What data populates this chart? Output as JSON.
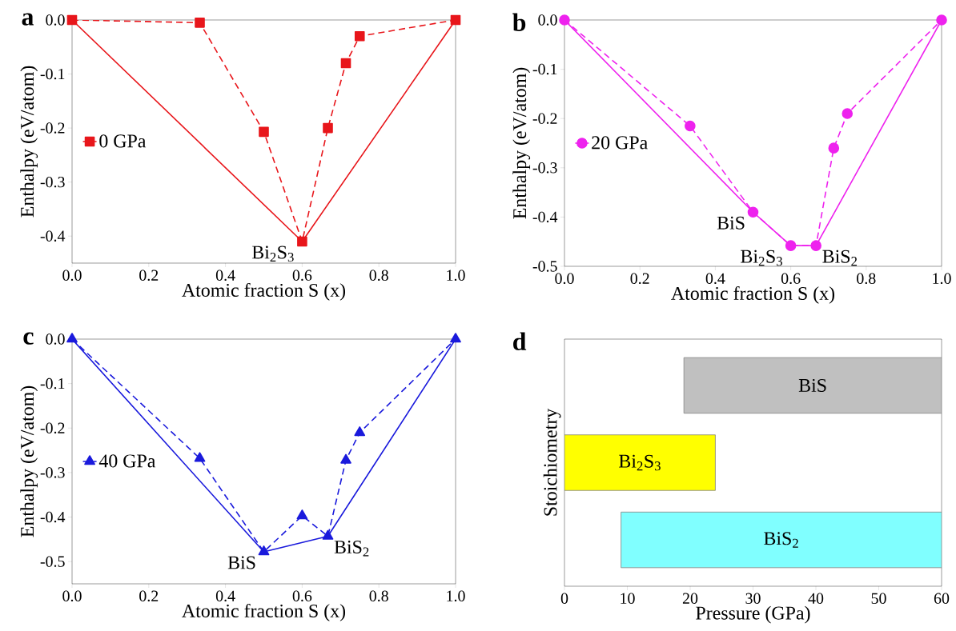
{
  "chart_data": [
    {
      "type": "line",
      "title": "a",
      "xlabel": "Atomic fraction S (x)",
      "ylabel": "Enthalpy (eV/atom)",
      "xlim": [
        0,
        1
      ],
      "ylim": [
        -0.45,
        0
      ],
      "xticks": [
        {
          "value": 0,
          "label": "0.0"
        },
        {
          "value": 0.2,
          "label": "0.2"
        },
        {
          "value": 0.4,
          "label": "0.4"
        },
        {
          "value": 0.6,
          "label": "0.6"
        },
        {
          "value": 0.8,
          "label": "0.8"
        },
        {
          "value": 1,
          "label": "1.0"
        }
      ],
      "yticks": [
        {
          "value": 0,
          "label": "0.0"
        },
        {
          "value": -0.1,
          "label": "-0.1"
        },
        {
          "value": -0.2,
          "label": "-0.2"
        },
        {
          "value": -0.3,
          "label": "-0.3"
        },
        {
          "value": -0.4,
          "label": "-0.4"
        }
      ],
      "legend": "left",
      "series": [
        {
          "name": "0 GPa",
          "color": "#e8161b",
          "marker": "square",
          "line_style": "dashed",
          "x": [
            0,
            0.333,
            0.5,
            0.6,
            0.667,
            0.714,
            0.75,
            1
          ],
          "values": [
            0,
            -0.005,
            -0.207,
            -0.41,
            -0.2,
            -0.08,
            -0.03,
            0
          ]
        },
        {
          "color": "#e8161b",
          "marker": "none",
          "line_style": "solid",
          "x": [
            0,
            0.6,
            1
          ],
          "values": [
            0,
            -0.41,
            0
          ]
        }
      ],
      "annotations": [
        {
          "text": "Bi$_{2}$S$_{3}$",
          "x": 0.6,
          "y": -0.41
        }
      ]
    },
    {
      "type": "line",
      "title": "b",
      "xlabel": "Atomic fraction S (x)",
      "ylabel": "Enthalpy (eV/atom)",
      "xlim": [
        0,
        1
      ],
      "ylim": [
        -0.5,
        0
      ],
      "xticks": [
        {
          "value": 0,
          "label": "0.0"
        },
        {
          "value": 0.2,
          "label": "0.2"
        },
        {
          "value": 0.4,
          "label": "0.4"
        },
        {
          "value": 0.6,
          "label": "0.6"
        },
        {
          "value": 0.8,
          "label": "0.8"
        },
        {
          "value": 1,
          "label": "1.0"
        }
      ],
      "yticks": [
        {
          "value": 0,
          "label": "0.0"
        },
        {
          "value": -0.1,
          "label": "-0.1"
        },
        {
          "value": -0.2,
          "label": "-0.2"
        },
        {
          "value": -0.3,
          "label": "-0.3"
        },
        {
          "value": -0.4,
          "label": "-0.4"
        },
        {
          "value": -0.5,
          "label": "-0.5"
        }
      ],
      "legend": "left",
      "series": [
        {
          "name": "20 GPa",
          "color": "#ee22ee",
          "marker": "circle",
          "line_style": "dashed",
          "x": [
            0,
            0.333,
            0.5,
            0.6,
            0.667,
            0.714,
            0.75,
            1
          ],
          "values": [
            0,
            -0.215,
            -0.39,
            -0.458,
            -0.458,
            -0.26,
            -0.19,
            0
          ]
        },
        {
          "color": "#ee22ee",
          "marker": "none",
          "line_style": "solid",
          "x": [
            0,
            0.5,
            0.6,
            0.667,
            1
          ],
          "values": [
            0,
            -0.39,
            -0.458,
            -0.458,
            0
          ]
        }
      ],
      "annotations": [
        {
          "text": "BiS",
          "x": 0.5,
          "y": -0.39
        },
        {
          "text": "Bi$_{2}$S$_{3}$",
          "x": 0.6,
          "y": -0.458
        },
        {
          "text": "BiS$_{2}$",
          "x": 0.667,
          "y": -0.458
        }
      ]
    },
    {
      "type": "line",
      "title": "c",
      "xlabel": "Atomic fraction S (x)",
      "ylabel": "Enthalpy (eV/atom)",
      "xlim": [
        0,
        1
      ],
      "ylim": [
        -0.55,
        0
      ],
      "xticks": [
        {
          "value": 0,
          "label": "0.0"
        },
        {
          "value": 0.2,
          "label": "0.2"
        },
        {
          "value": 0.4,
          "label": "0.4"
        },
        {
          "value": 0.6,
          "label": "0.6"
        },
        {
          "value": 0.8,
          "label": "0.8"
        },
        {
          "value": 1,
          "label": "1.0"
        }
      ],
      "yticks": [
        {
          "value": 0,
          "label": "0.0"
        },
        {
          "value": -0.1,
          "label": "-0.1"
        },
        {
          "value": -0.2,
          "label": "-0.2"
        },
        {
          "value": -0.3,
          "label": "-0.3"
        },
        {
          "value": -0.4,
          "label": "-0.4"
        },
        {
          "value": -0.5,
          "label": "-0.5"
        }
      ],
      "legend": "left",
      "series": [
        {
          "name": "40 GPa",
          "color": "#1a1adc",
          "marker": "triangle",
          "line_style": "dashed",
          "x": [
            0,
            0.333,
            0.5,
            0.6,
            0.667,
            0.714,
            0.75,
            1
          ],
          "values": [
            0,
            -0.268,
            -0.478,
            -0.397,
            -0.443,
            -0.272,
            -0.21,
            0
          ]
        },
        {
          "color": "#1a1adc",
          "marker": "none",
          "line_style": "solid",
          "x": [
            0,
            0.5,
            0.667,
            1
          ],
          "values": [
            0,
            -0.478,
            -0.443,
            0
          ]
        }
      ],
      "annotations": [
        {
          "text": "BiS",
          "x": 0.5,
          "y": -0.478
        },
        {
          "text": "BiS$_{2}$",
          "x": 0.667,
          "y": -0.443
        }
      ]
    },
    {
      "type": "bar",
      "orientation": "horizontal",
      "title": "d",
      "xlabel": "Pressure (GPa)",
      "ylabel": "Stoichiometry",
      "xlim": [
        0,
        60
      ],
      "xticks": [
        0,
        10,
        20,
        30,
        40,
        50,
        60
      ],
      "categories": [
        "BiS",
        "Bi$_{2}$S$_{3}$",
        "BiS$_{2}$"
      ],
      "base": [
        19,
        0,
        9
      ],
      "values": [
        41,
        24,
        51
      ],
      "colors": [
        "#c0c0c0",
        "#ffff00",
        "#80ffff"
      ]
    }
  ]
}
